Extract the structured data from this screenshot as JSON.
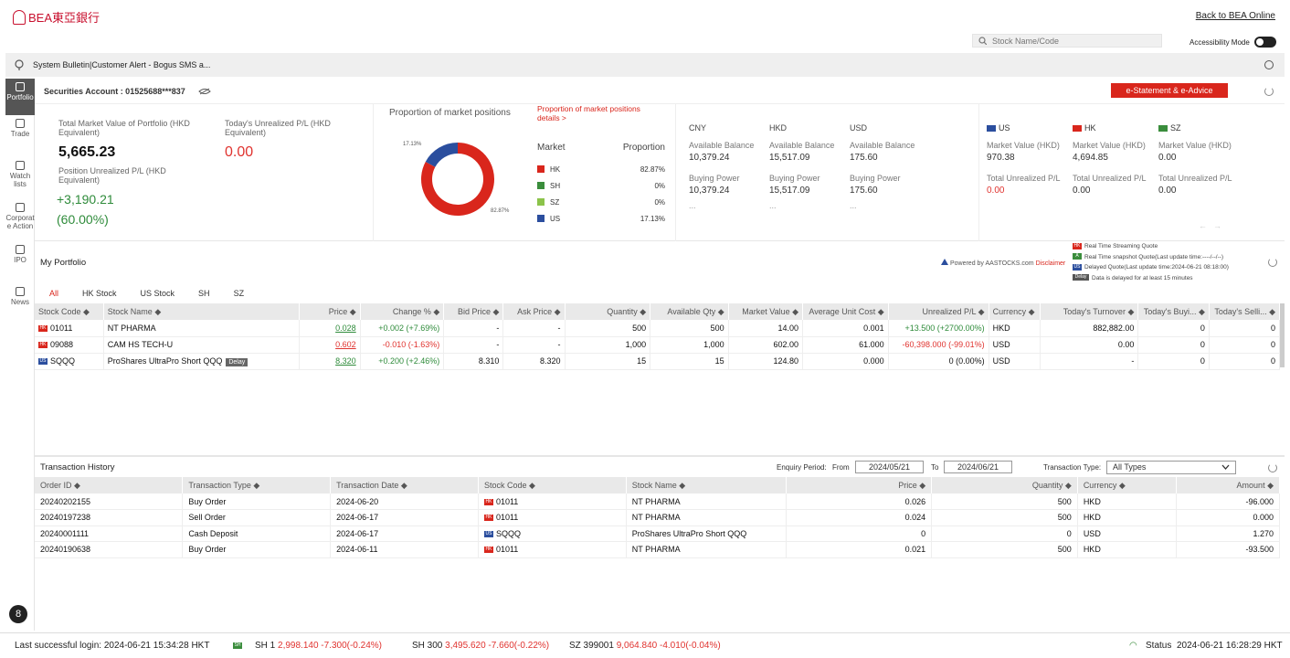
{
  "header": {
    "logo_text": "BEA東亞銀行",
    "back_link": "Back to BEA Online",
    "search_placeholder": "Stock Name/Code",
    "accessibility_label": "Accessibility Mode"
  },
  "bulletin": {
    "text": "System Bulletin|Customer Alert - Bogus SMS a..."
  },
  "sidebar": {
    "items": [
      {
        "label": "Portfolio",
        "icon": "person-icon"
      },
      {
        "label": "Trade",
        "icon": "trade-icon"
      },
      {
        "label": "Watch lists",
        "icon": "heart-icon"
      },
      {
        "label": "Corporat e Action",
        "icon": "document-icon"
      },
      {
        "label": "IPO",
        "icon": "ipo-icon"
      },
      {
        "label": "News",
        "icon": "news-icon"
      }
    ]
  },
  "account": {
    "label": "Securities Account : 01525688***837",
    "estatement": "e-Statement & e-Advice"
  },
  "summary": {
    "total_label": "Total Market Value of Portfolio (HKD Equivalent)",
    "total_value": "5,665.23",
    "pos_pl_label": "Position Unrealized P/L (HKD Equivalent)",
    "pos_pl_value": "+3,190.21",
    "pos_pl_pct": "(60.00%)",
    "today_pl_label": "Today's Unrealized P/L (HKD Equivalent)",
    "today_pl_value": "0.00"
  },
  "proportion": {
    "title": "Proportion of market positions",
    "details_link": "Proportion of market positions details >",
    "market_header": "Market",
    "proportion_header": "Proportion",
    "slice_label_us": "17.13%",
    "slice_label_hk": "82.87%",
    "rows": [
      {
        "market": "HK",
        "value": "82.87%",
        "color": "#d9261c",
        "fraction": 0.8287
      },
      {
        "market": "SH",
        "value": "0%",
        "color": "#3a8d3c",
        "fraction": 0
      },
      {
        "market": "SZ",
        "value": "0%",
        "color": "#8bc34a",
        "fraction": 0
      },
      {
        "market": "US",
        "value": "17.13%",
        "color": "#2b4e9e",
        "fraction": 0.1713
      }
    ]
  },
  "balances": [
    {
      "ccy": "CNY",
      "avail_label": "Available Balance",
      "avail": "10,379.24",
      "bp_label": "Buying Power",
      "bp": "10,379.24",
      "more": "..."
    },
    {
      "ccy": "HKD",
      "avail_label": "Available Balance",
      "avail": "15,517.09",
      "bp_label": "Buying Power",
      "bp": "15,517.09",
      "more": "..."
    },
    {
      "ccy": "USD",
      "avail_label": "Available Balance",
      "avail": "175.60",
      "bp_label": "Buying Power",
      "bp": "175.60",
      "more": "..."
    }
  ],
  "markets": [
    {
      "name": "US",
      "mv_label": "Market Value (HKD)",
      "mv": "970.38",
      "pl_label": "Total Unrealized P/L",
      "pl": "0.00",
      "pl_color": "#e0332f"
    },
    {
      "name": "HK",
      "mv_label": "Market Value (HKD)",
      "mv": "4,694.85",
      "pl_label": "Total Unrealized P/L",
      "pl": "0.00",
      "pl_color": "#333"
    },
    {
      "name": "SZ",
      "mv_label": "Market Value (HKD)",
      "mv": "0.00",
      "pl_label": "Total Unrealized P/L",
      "pl": "0.00",
      "pl_color": "#333"
    }
  ],
  "portfolio": {
    "title": "My Portfolio",
    "powered": "Powered by AASTOCKS.com",
    "disclaimer": "Disclaimer",
    "legend": [
      "Real Time Streaming Quote",
      "Real Time snapshot Quote(Last update time:----/--/--)",
      "Delayed Quote(Last update time:2024-06-21 08:18:00)",
      "Data is delayed for at least 15 minutes"
    ],
    "legend_badges": [
      "HK",
      "A",
      "US",
      "Delay"
    ],
    "tabs": [
      "All",
      "HK Stock",
      "US Stock",
      "SH",
      "SZ"
    ],
    "columns": [
      "Stock Code ◆",
      "Stock Name ◆",
      "Price ◆",
      "Change % ◆",
      "Bid Price ◆",
      "Ask Price ◆",
      "Quantity ◆",
      "Available Qty ◆",
      "Market Value ◆",
      "Average Unit Cost ◆",
      "Unrealized P/L ◆",
      "Currency ◆",
      "Today's Turnover ◆",
      "Today's Buyi... ◆",
      "Today's Selli... ◆"
    ],
    "rows": [
      {
        "mkt": "HK",
        "code": "01011",
        "name": "NT PHARMA",
        "delay": "",
        "price": "0.028",
        "chg": "+0.002 (+7.69%)",
        "bid": "-",
        "ask": "-",
        "qty": "500",
        "avail": "500",
        "mv": "14.00",
        "avg": "0.001",
        "pl": "+13.500 (+2700.00%)",
        "ccy": "HKD",
        "turn": "882,882.00",
        "buy": "0",
        "sell": "0",
        "dir": "up"
      },
      {
        "mkt": "HK",
        "code": "09088",
        "name": "CAM HS TECH-U",
        "delay": "",
        "price": "0.602",
        "chg": "-0.010 (-1.63%)",
        "bid": "-",
        "ask": "-",
        "qty": "1,000",
        "avail": "1,000",
        "mv": "602.00",
        "avg": "61.000",
        "pl": "-60,398.000 (-99.01%)",
        "ccy": "USD",
        "turn": "0.00",
        "buy": "0",
        "sell": "0",
        "dir": "down"
      },
      {
        "mkt": "US",
        "code": "SQQQ",
        "name": "ProShares UltraPro Short QQQ",
        "delay": "Delay",
        "price": "8.320",
        "chg": "+0.200 (+2.46%)",
        "bid": "8.310",
        "ask": "8.320",
        "qty": "15",
        "avail": "15",
        "mv": "124.80",
        "avg": "0.000",
        "pl": "0 (0.00%)",
        "ccy": "USD",
        "turn": "-",
        "buy": "0",
        "sell": "0",
        "dir": "up"
      }
    ]
  },
  "transactions": {
    "title": "Transaction History",
    "enquiry_label": "Enquiry Period:",
    "from_label": "From",
    "from": "2024/05/21",
    "to_label": "To",
    "to": "2024/06/21",
    "type_label": "Transaction Type:",
    "type_value": "All Types",
    "columns": [
      "Order ID ◆",
      "Transaction Type ◆",
      "Transaction Date ◆",
      "Stock Code ◆",
      "Stock Name ◆",
      "Price ◆",
      "Quantity ◆",
      "Currency ◆",
      "Amount ◆"
    ],
    "rows": [
      {
        "id": "20240202155",
        "type": "Buy Order",
        "date": "2024-06-20",
        "mkt": "HK",
        "code": "01011",
        "name": "NT PHARMA",
        "price": "0.026",
        "qty": "500",
        "ccy": "HKD",
        "amt": "-96.000"
      },
      {
        "id": "20240197238",
        "type": "Sell Order",
        "date": "2024-06-17",
        "mkt": "HK",
        "code": "01011",
        "name": "NT PHARMA",
        "price": "0.024",
        "qty": "500",
        "ccy": "HKD",
        "amt": "0.000"
      },
      {
        "id": "20240001111",
        "type": "Cash Deposit",
        "date": "2024-06-17",
        "mkt": "US",
        "code": "SQQQ",
        "name": "ProShares UltraPro Short QQQ",
        "price": "0",
        "qty": "0",
        "ccy": "USD",
        "amt": "1.270"
      },
      {
        "id": "20240190638",
        "type": "Buy Order",
        "date": "2024-06-11",
        "mkt": "HK",
        "code": "01011",
        "name": "NT PHARMA",
        "price": "0.021",
        "qty": "500",
        "ccy": "HKD",
        "amt": "-93.500"
      }
    ]
  },
  "footer": {
    "last_login": "Last successful login: 2024-06-21 15:34:28 HKT",
    "sh_badge": "SH",
    "sh1_name": "SH 1",
    "sh1_val": "2,998.140 -7.300(-0.24%)",
    "sh300_name": "SH 300",
    "sh300_val": "3,495.620 -7.660(-0.22%)",
    "sz_name": "SZ 399001",
    "sz_val": "9,064.840 -4.010(-0.04%)",
    "status_label": "Status",
    "time": "2024-06-21 16:28:29 HKT"
  },
  "a11y_button": "8"
}
